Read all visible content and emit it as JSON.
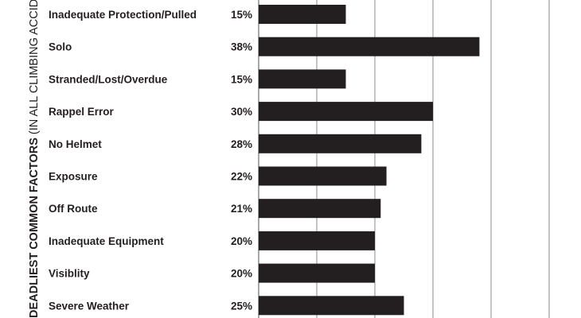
{
  "chart_data": {
    "type": "bar",
    "orientation": "horizontal",
    "title_bold": "DEADLIEST COMMON FACTORS",
    "title_normal": "(IN ALL CLIMBING ACCIDE",
    "categories": [
      "Inadequate Protection/Pulled",
      "Solo",
      "Stranded/Lost/Overdue",
      "Rappel Error",
      "No Helmet",
      "Exposure",
      "Off Route",
      "Inadequate Equipment",
      "Visiblity",
      "Severe Weather"
    ],
    "values": [
      15,
      38,
      15,
      30,
      28,
      22,
      21,
      20,
      20,
      25
    ],
    "value_labels": [
      "15%",
      "38%",
      "15%",
      "30%",
      "28%",
      "22%",
      "21%",
      "20%",
      "20%",
      "25%"
    ],
    "xlim": [
      0,
      50
    ],
    "grid": true,
    "colors": {
      "bar": "#231f20",
      "text": "#231f20",
      "grid": "#6d6e71"
    }
  }
}
